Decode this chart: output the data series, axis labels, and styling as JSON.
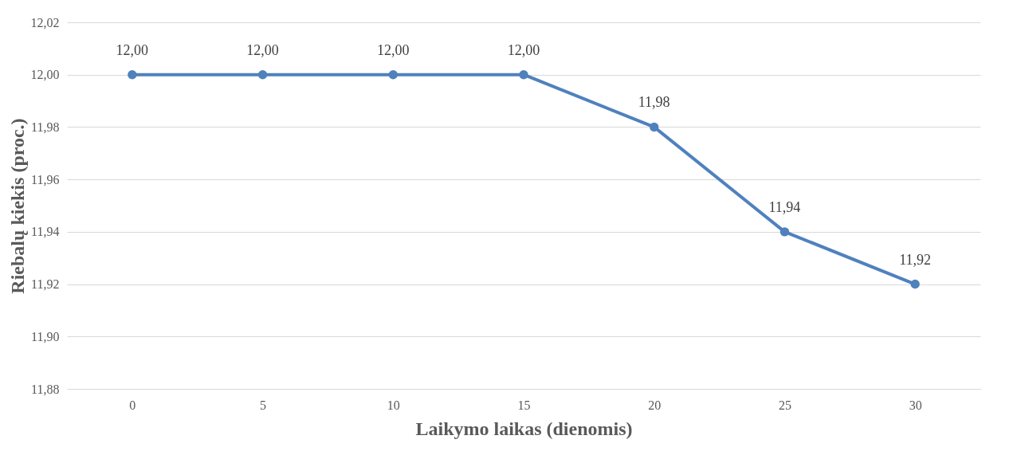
{
  "chart_data": {
    "type": "line",
    "xlabel": "Laikymo laikas (dienomis)",
    "ylabel": "Riebalų kiekis (proc.)",
    "categories": [
      "0",
      "5",
      "10",
      "15",
      "20",
      "25",
      "30"
    ],
    "series": [
      {
        "color": "#4f81bd",
        "values": [
          12.0,
          12.0,
          12.0,
          12.0,
          11.98,
          11.94,
          11.92
        ],
        "value_labels": [
          "12,00",
          "12,00",
          "12,00",
          "12,00",
          "11,98",
          "11,94",
          "11,92"
        ]
      }
    ],
    "ylim": [
      11.88,
      12.02
    ],
    "yticks": [
      {
        "value": 11.88,
        "label": "11,88"
      },
      {
        "value": 11.9,
        "label": "11,90"
      },
      {
        "value": 11.92,
        "label": "11,92"
      },
      {
        "value": 11.94,
        "label": "11,94"
      },
      {
        "value": 11.96,
        "label": "11,96"
      },
      {
        "value": 11.98,
        "label": "11,98"
      },
      {
        "value": 12.0,
        "label": "12,00"
      },
      {
        "value": 12.02,
        "label": "12,02"
      }
    ],
    "grid": "y",
    "marker": "circle",
    "line_style": "solid"
  }
}
